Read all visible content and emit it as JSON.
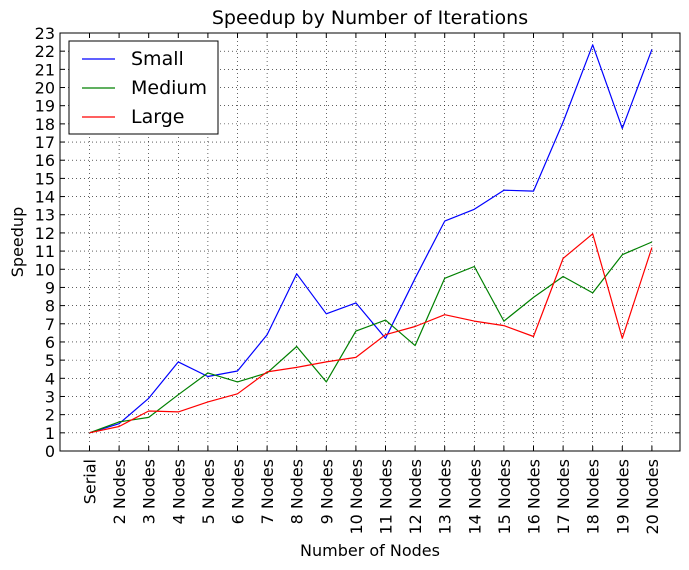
{
  "chart_data": {
    "type": "line",
    "title": "Speedup by Number of Iterations",
    "xlabel": "Number of Nodes",
    "ylabel": "Speedup",
    "categories": [
      "Serial",
      "2 Nodes",
      "3 Nodes",
      "4 Nodes",
      "5 Nodes",
      "6 Nodes",
      "7 Nodes",
      "8 Nodes",
      "9 Nodes",
      "10 Nodes",
      "11 Nodes",
      "12 Nodes",
      "13 Nodes",
      "14 Nodes",
      "15 Nodes",
      "16 Nodes",
      "17 Nodes",
      "18 Nodes",
      "19 Nodes",
      "20 Nodes"
    ],
    "ylim": [
      0,
      23
    ],
    "yticks": [
      "0",
      "1",
      "2",
      "3",
      "4",
      "5",
      "6",
      "7",
      "8",
      "9",
      "10",
      "11",
      "12",
      "13",
      "14",
      "15",
      "16",
      "17",
      "18",
      "19",
      "20",
      "21",
      "22",
      "23"
    ],
    "grid": true,
    "legend_position": "top-left",
    "series": [
      {
        "name": "Small",
        "color": "#0000ff",
        "values": [
          1.0,
          1.5,
          2.9,
          4.9,
          4.1,
          4.4,
          6.4,
          9.75,
          7.55,
          8.15,
          6.2,
          9.5,
          12.65,
          13.3,
          14.35,
          14.3,
          18.1,
          22.35,
          17.75,
          22.1
        ]
      },
      {
        "name": "Medium",
        "color": "#008000",
        "values": [
          1.0,
          1.6,
          1.85,
          3.1,
          4.3,
          3.8,
          4.3,
          5.75,
          3.8,
          6.6,
          7.2,
          5.8,
          9.5,
          10.15,
          7.15,
          8.45,
          9.6,
          8.7,
          10.8,
          11.5
        ]
      },
      {
        "name": "Large",
        "color": "#ff0000",
        "values": [
          1.0,
          1.35,
          2.2,
          2.15,
          2.7,
          3.15,
          4.35,
          4.6,
          4.9,
          5.15,
          6.4,
          6.85,
          7.5,
          7.15,
          6.9,
          6.3,
          10.6,
          11.95,
          6.2,
          11.2
        ]
      }
    ]
  }
}
